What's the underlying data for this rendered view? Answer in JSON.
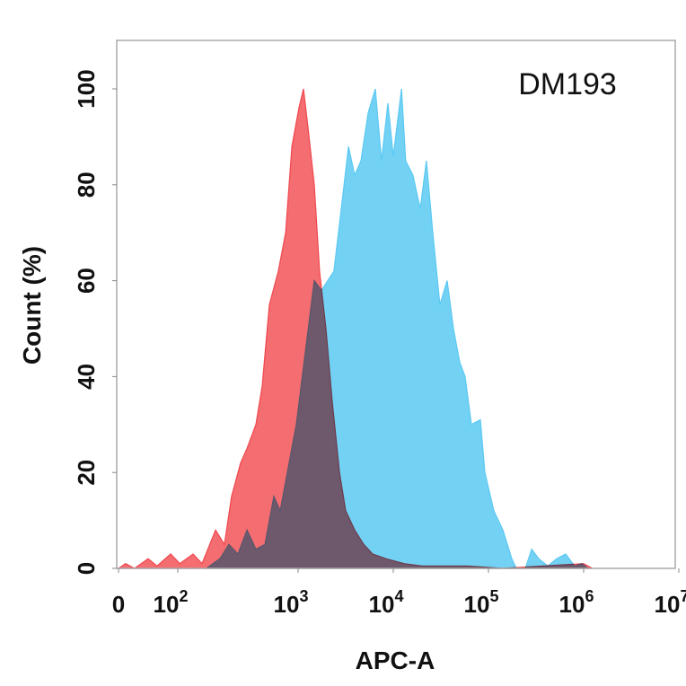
{
  "chart_data": {
    "type": "area",
    "title": "",
    "annotation": "DM193",
    "xlabel": "APC-A",
    "ylabel": "Count  (%)",
    "x_scale": "biexponential",
    "xlim": [
      0,
      10000000
    ],
    "ylim": [
      0,
      100
    ],
    "x_ticks": [
      {
        "value": 0,
        "base": "0",
        "exp": ""
      },
      {
        "value": 100,
        "base": "10",
        "exp": "2"
      },
      {
        "value": 1000,
        "base": "10",
        "exp": "3"
      },
      {
        "value": 10000,
        "base": "10",
        "exp": "4"
      },
      {
        "value": 100000,
        "base": "10",
        "exp": "5"
      },
      {
        "value": 1000000,
        "base": "10",
        "exp": "6"
      },
      {
        "value": 10000000,
        "base": "10",
        "exp": "7"
      }
    ],
    "y_ticks": [
      "0",
      "20",
      "40",
      "60",
      "80",
      "100"
    ],
    "grid": false,
    "series": [
      {
        "color": "#5bc9f2",
        "x": [
          173,
          224,
          266,
          316,
          376,
          446,
          530,
          629,
          710,
          814,
          966,
          1190,
          1480,
          1760,
          2050,
          2380,
          2840,
          3380,
          3930,
          4570,
          5440,
          6470,
          7530,
          8770,
          10000,
          12200,
          13500,
          16100,
          19200,
          22300,
          26000,
          30900,
          36800,
          42900,
          49900,
          56800,
          66200,
          82200,
          91700,
          114000,
          142000,
          176000,
          196000,
          244000,
          284000,
          338000,
          420000,
          521000,
          648000,
          805000,
          957000,
          1110000
        ],
        "y": [
          0,
          2,
          5,
          3,
          8,
          4,
          5,
          15,
          12,
          20,
          30,
          45,
          60,
          58,
          60,
          62,
          75,
          88,
          82,
          85,
          95,
          100,
          85,
          97,
          86,
          100,
          85,
          82,
          75,
          85,
          70,
          55,
          60,
          50,
          43,
          40,
          30,
          31,
          20,
          12,
          8,
          2,
          0,
          0,
          4,
          2,
          0.5,
          2,
          3,
          0.5,
          1,
          0
        ]
      },
      {
        "color": "#f0484e",
        "x": [
          0,
          12,
          27,
          50,
          65,
          88,
          104,
          134,
          159,
          206,
          244,
          280,
          333,
          376,
          446,
          503,
          577,
          685,
          787,
          888,
          1020,
          1140,
          1270,
          1480,
          1680,
          1960,
          2280,
          2720,
          3160,
          3930,
          4890,
          6070,
          8400,
          13000,
          20000,
          59400,
          142000,
          1000000,
          1240000
        ],
        "y": [
          0,
          1,
          0,
          2,
          0.5,
          3,
          1,
          3,
          1,
          8,
          5,
          15,
          22,
          25,
          30,
          38,
          55,
          62,
          70,
          88,
          96,
          100,
          92,
          80,
          62,
          50,
          35,
          20,
          12,
          8,
          5,
          3,
          2,
          1,
          0.5,
          0.5,
          0,
          1,
          0
        ]
      }
    ]
  }
}
